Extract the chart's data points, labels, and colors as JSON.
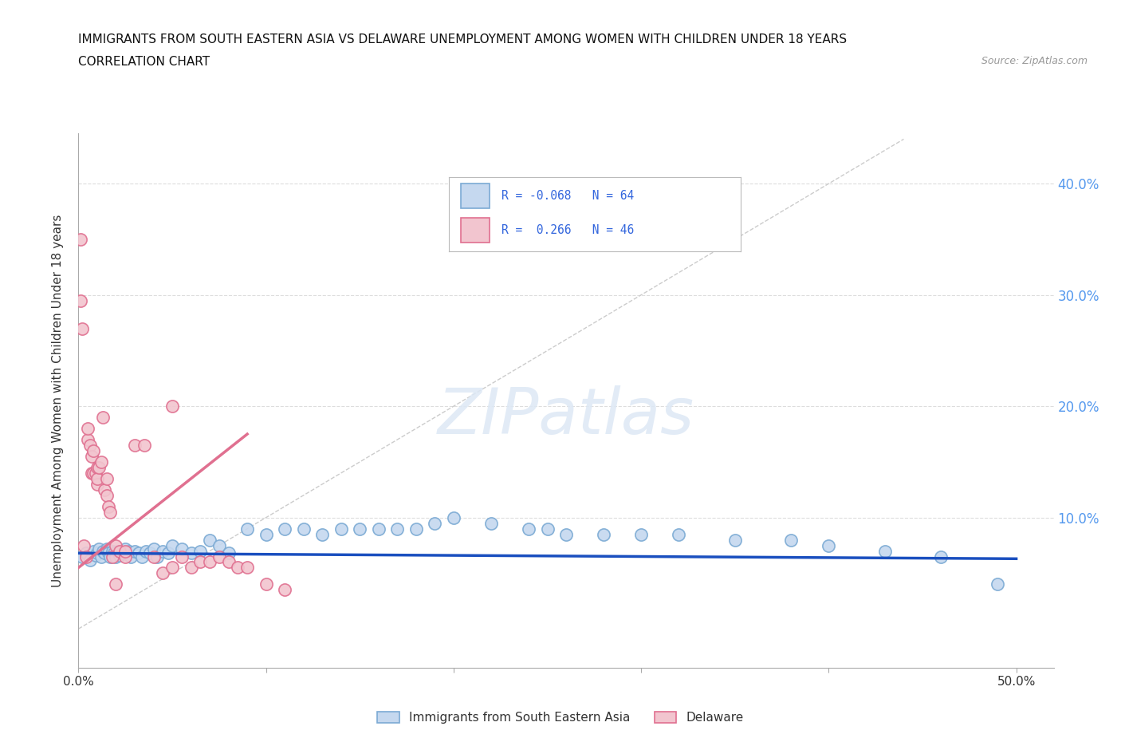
{
  "title_line1": "IMMIGRANTS FROM SOUTH EASTERN ASIA VS DELAWARE UNEMPLOYMENT AMONG WOMEN WITH CHILDREN UNDER 18 YEARS",
  "title_line2": "CORRELATION CHART",
  "source": "Source: ZipAtlas.com",
  "ylabel": "Unemployment Among Women with Children Under 18 years",
  "xlim": [
    0.0,
    0.52
  ],
  "ylim": [
    -0.035,
    0.445
  ],
  "xticks": [
    0.0,
    0.1,
    0.2,
    0.3,
    0.4,
    0.5
  ],
  "xtick_labels": [
    "0.0%",
    "",
    "",
    "",
    "",
    "50.0%"
  ],
  "ytick_positions": [
    0.0,
    0.1,
    0.2,
    0.3,
    0.4
  ],
  "ytick_labels_right": [
    "",
    "10.0%",
    "20.0%",
    "30.0%",
    "40.0%"
  ],
  "legend_r1": "R = -0.068",
  "legend_n1": "N = 64",
  "legend_r2": "R =  0.266",
  "legend_n2": "N = 46",
  "blue_scatter_x": [
    0.002,
    0.004,
    0.006,
    0.008,
    0.009,
    0.01,
    0.011,
    0.012,
    0.013,
    0.014,
    0.015,
    0.016,
    0.017,
    0.018,
    0.019,
    0.02,
    0.021,
    0.022,
    0.023,
    0.025,
    0.026,
    0.027,
    0.028,
    0.03,
    0.032,
    0.034,
    0.036,
    0.038,
    0.04,
    0.042,
    0.045,
    0.048,
    0.05,
    0.055,
    0.06,
    0.065,
    0.07,
    0.075,
    0.08,
    0.09,
    0.1,
    0.11,
    0.12,
    0.13,
    0.14,
    0.15,
    0.16,
    0.17,
    0.18,
    0.19,
    0.2,
    0.22,
    0.24,
    0.25,
    0.26,
    0.28,
    0.3,
    0.32,
    0.35,
    0.38,
    0.4,
    0.43,
    0.46,
    0.49
  ],
  "blue_scatter_y": [
    0.065,
    0.068,
    0.062,
    0.07,
    0.066,
    0.068,
    0.072,
    0.065,
    0.07,
    0.068,
    0.072,
    0.068,
    0.065,
    0.07,
    0.068,
    0.065,
    0.07,
    0.066,
    0.068,
    0.072,
    0.068,
    0.07,
    0.065,
    0.07,
    0.068,
    0.065,
    0.07,
    0.068,
    0.072,
    0.065,
    0.07,
    0.068,
    0.075,
    0.072,
    0.068,
    0.07,
    0.08,
    0.075,
    0.068,
    0.09,
    0.085,
    0.09,
    0.09,
    0.085,
    0.09,
    0.09,
    0.09,
    0.09,
    0.09,
    0.095,
    0.1,
    0.095,
    0.09,
    0.09,
    0.085,
    0.085,
    0.085,
    0.085,
    0.08,
    0.08,
    0.075,
    0.07,
    0.065,
    0.04
  ],
  "pink_scatter_x": [
    0.001,
    0.001,
    0.002,
    0.003,
    0.004,
    0.005,
    0.005,
    0.006,
    0.007,
    0.007,
    0.008,
    0.008,
    0.009,
    0.01,
    0.01,
    0.01,
    0.011,
    0.012,
    0.013,
    0.014,
    0.015,
    0.015,
    0.016,
    0.017,
    0.018,
    0.02,
    0.022,
    0.025,
    0.025,
    0.03,
    0.035,
    0.04,
    0.045,
    0.05,
    0.055,
    0.06,
    0.065,
    0.07,
    0.075,
    0.08,
    0.085,
    0.09,
    0.1,
    0.11,
    0.05,
    0.02
  ],
  "pink_scatter_y": [
    0.35,
    0.295,
    0.27,
    0.075,
    0.065,
    0.17,
    0.18,
    0.165,
    0.14,
    0.155,
    0.16,
    0.14,
    0.14,
    0.13,
    0.145,
    0.135,
    0.145,
    0.15,
    0.19,
    0.125,
    0.12,
    0.135,
    0.11,
    0.105,
    0.065,
    0.075,
    0.07,
    0.065,
    0.07,
    0.165,
    0.165,
    0.065,
    0.05,
    0.055,
    0.065,
    0.055,
    0.06,
    0.06,
    0.065,
    0.06,
    0.055,
    0.055,
    0.04,
    0.035,
    0.2,
    0.04
  ],
  "blue_line_x": [
    0.0,
    0.5
  ],
  "blue_line_y": [
    0.068,
    0.063
  ],
  "pink_line_x": [
    0.0,
    0.09
  ],
  "pink_line_y": [
    0.055,
    0.175
  ],
  "diagonal_line_x": [
    0.0,
    0.44
  ],
  "diagonal_line_y": [
    0.0,
    0.44
  ],
  "watermark": "ZIPatlas",
  "blue_dot_face": "#C5D8EF",
  "blue_dot_edge": "#7BAAD4",
  "pink_dot_face": "#F2C5CF",
  "pink_dot_edge": "#E07090",
  "blue_line_color": "#1A4FBF",
  "pink_line_color": "#E07090",
  "diagonal_color": "#CCCCCC",
  "grid_color": "#DDDDDD",
  "background_color": "#FFFFFF",
  "right_tick_color": "#5599EE",
  "text_color": "#333333"
}
